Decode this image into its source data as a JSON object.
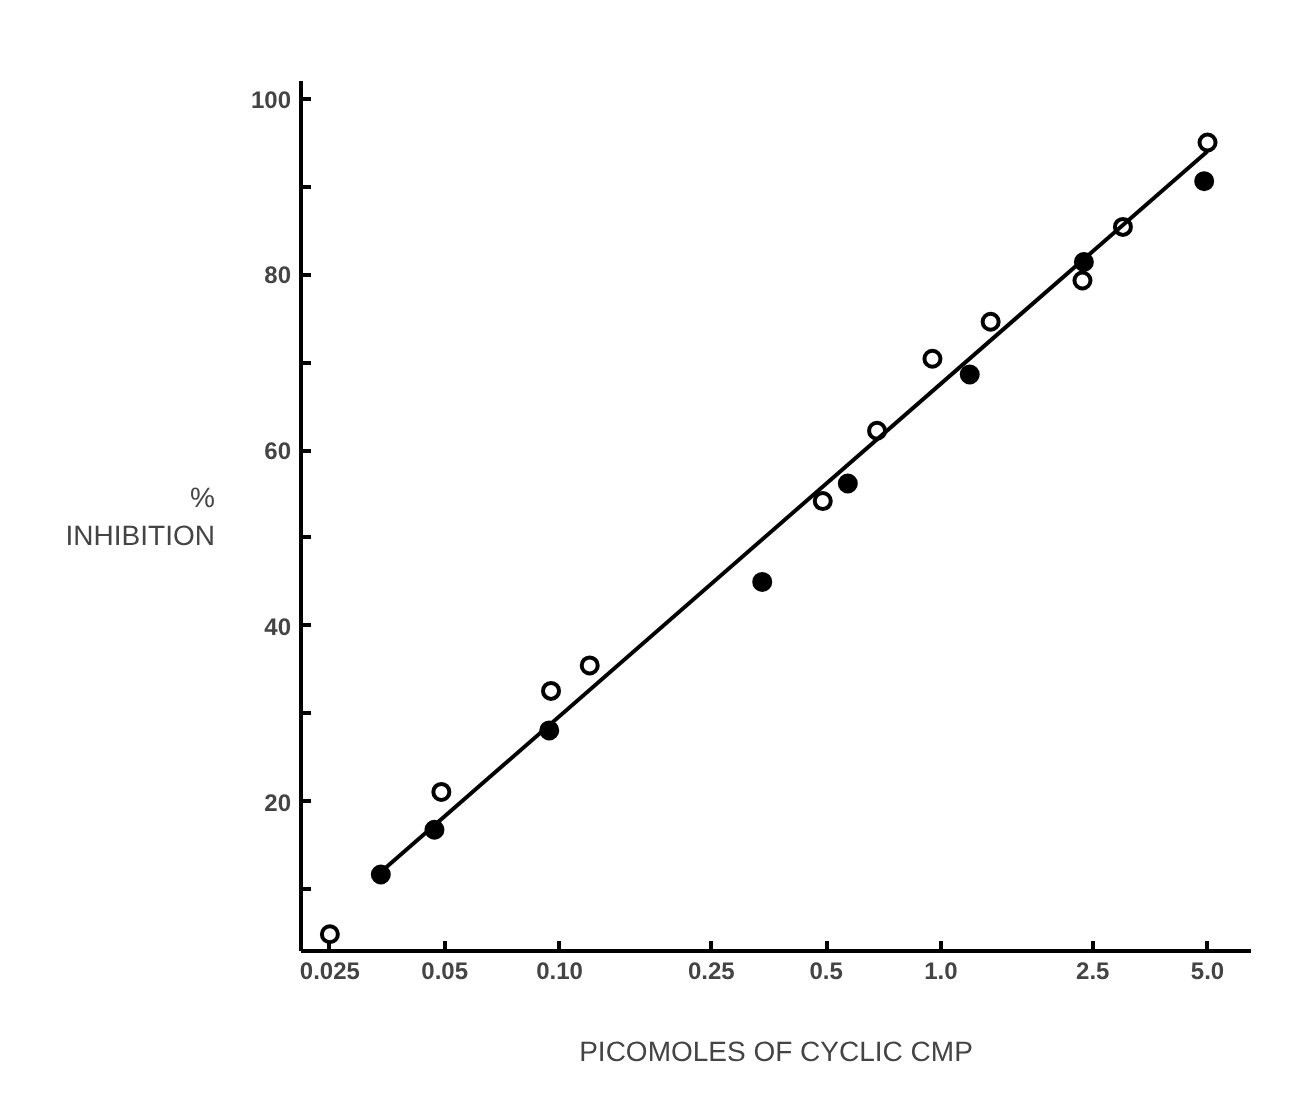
{
  "chart_data": {
    "type": "scatter",
    "xlabel": "PICOMOLES OF CYCLIC CMP",
    "ylabel": "%\nINHIBITION",
    "log": "x",
    "marker": "circle",
    "grid": false,
    "xlim": [
      0.021,
      6.5
    ],
    "ylim": [
      3,
      102
    ],
    "xticks": [
      0.025,
      0.05,
      {
        "value": 0.1,
        "label": "0.10"
      },
      0.25,
      0.5,
      {
        "value": 1.0,
        "label": "1.0"
      },
      2.5,
      {
        "value": 5.0,
        "label": "5.0"
      }
    ],
    "yticks": [
      {
        "value": 10,
        "label": null
      },
      20,
      {
        "value": 30,
        "label": null
      },
      40,
      {
        "value": 50,
        "label": null
      },
      60,
      {
        "value": 70,
        "label": null
      },
      80,
      {
        "value": 90,
        "label": null
      },
      100
    ],
    "series": [
      {
        "color": "#ffffff",
        "x": [
          0.025,
          0.049,
          0.095,
          0.12,
          0.49,
          0.68,
          0.95,
          1.35,
          2.35,
          3.0,
          5.0
        ],
        "values": [
          4.9,
          21.1,
          32.6,
          35.5,
          54.2,
          62.2,
          70.4,
          74.6,
          79.3,
          85.4,
          95
        ]
      },
      {
        "color": "#000000",
        "x": [
          0.034,
          0.047,
          0.094,
          0.34,
          0.57,
          1.19,
          2.37,
          4.9
        ],
        "values": [
          11.7,
          16.8,
          28.1,
          45.0,
          56.2,
          68.6,
          81.4,
          90.6
        ]
      },
      {
        "type": "line",
        "marker": "none",
        "color": "#000000",
        "x": [
          0.034,
          5.0
        ],
        "values": [
          12,
          94
        ]
      }
    ]
  }
}
